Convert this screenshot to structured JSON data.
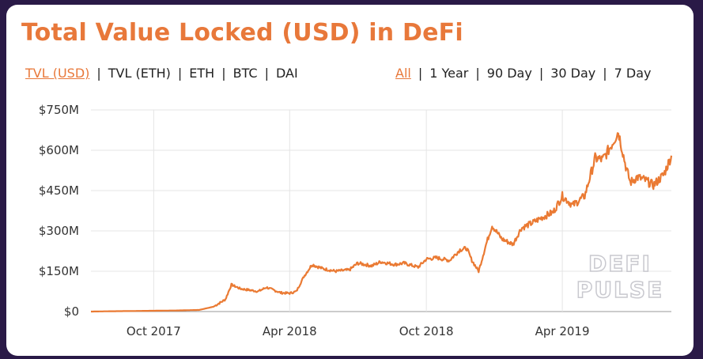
{
  "title": "Total Value Locked (USD) in DeFi",
  "metric_tabs": [
    {
      "label": "TVL (USD)",
      "active": true
    },
    {
      "label": "TVL (ETH)",
      "active": false
    },
    {
      "label": "ETH",
      "active": false
    },
    {
      "label": "BTC",
      "active": false
    },
    {
      "label": "DAI",
      "active": false
    }
  ],
  "range_tabs": [
    {
      "label": "All",
      "active": true
    },
    {
      "label": "1 Year",
      "active": false
    },
    {
      "label": "90 Day",
      "active": false
    },
    {
      "label": "30 Day",
      "active": false
    },
    {
      "label": "7 Day",
      "active": false
    }
  ],
  "separator": "|",
  "watermark": [
    "DEFI",
    "PULSE"
  ],
  "colors": {
    "accent": "#e8783a",
    "line": "#ea7a33",
    "background": "#2a1a47",
    "grid": "#e4e4e4"
  },
  "chart_data": {
    "type": "line",
    "ylim": [
      0,
      750
    ],
    "y_ticks": [
      0,
      150,
      300,
      450,
      600,
      750
    ],
    "y_tick_labels": [
      "$0",
      "$150M",
      "$300M",
      "$450M",
      "$600M",
      "$750M"
    ],
    "xlim": [
      "2017-07-09",
      "2019-08-25"
    ],
    "x_ticks": [
      "2017-10-01",
      "2018-04-01",
      "2018-10-01",
      "2019-04-01"
    ],
    "x_tick_labels": [
      "Oct 2017",
      "Apr 2018",
      "Oct 2018",
      "Apr 2019"
    ],
    "grid": true,
    "legend": "none",
    "series": [
      {
        "x": [
          "2017-07-09",
          "2017-08-01",
          "2017-09-01",
          "2017-10-01",
          "2017-11-01",
          "2017-12-01",
          "2017-12-20",
          "2018-01-05",
          "2018-01-13",
          "2018-01-25",
          "2018-02-06",
          "2018-02-18",
          "2018-03-01",
          "2018-03-20",
          "2018-04-01",
          "2018-04-10",
          "2018-04-20",
          "2018-05-01",
          "2018-05-15",
          "2018-06-01",
          "2018-06-20",
          "2018-07-01",
          "2018-07-20",
          "2018-08-01",
          "2018-08-20",
          "2018-09-01",
          "2018-09-20",
          "2018-10-01",
          "2018-10-15",
          "2018-11-01",
          "2018-11-15",
          "2018-11-24",
          "2018-12-01",
          "2018-12-10",
          "2018-12-20",
          "2018-12-28",
          "2019-01-10",
          "2019-01-25",
          "2019-02-05",
          "2019-02-20",
          "2019-03-05",
          "2019-03-20",
          "2019-04-01",
          "2019-04-15",
          "2019-05-01",
          "2019-05-15",
          "2019-05-25",
          "2019-06-05",
          "2019-06-15",
          "2019-06-25",
          "2019-07-01",
          "2019-07-10",
          "2019-07-20",
          "2019-08-01",
          "2019-08-15",
          "2019-08-25"
        ],
        "values": [
          0,
          1,
          2,
          3,
          4,
          6,
          18,
          45,
          100,
          85,
          80,
          75,
          90,
          70,
          68,
          75,
          130,
          175,
          160,
          150,
          155,
          180,
          170,
          185,
          175,
          180,
          165,
          195,
          200,
          190,
          230,
          235,
          190,
          150,
          250,
          320,
          270,
          250,
          310,
          330,
          350,
          370,
          430,
          395,
          430,
          570,
          565,
          615,
          670,
          540,
          480,
          500,
          490,
          470,
          510,
          580
        ]
      }
    ]
  }
}
